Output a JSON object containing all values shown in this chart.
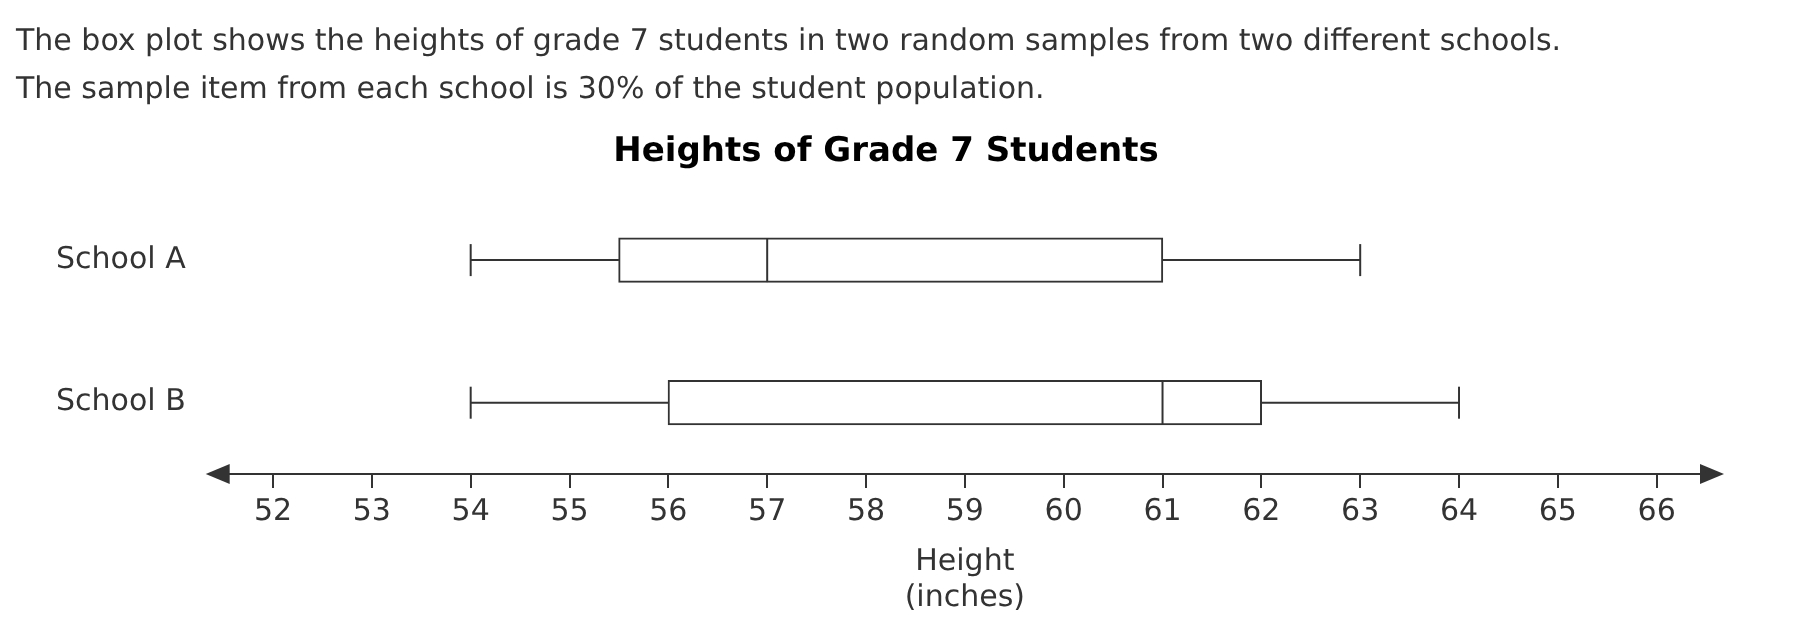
{
  "chart_data": {
    "type": "box",
    "orientation": "horizontal",
    "title": "Heights of Grade 7 Students",
    "xlabel": "Height\n(inches)",
    "annotations": [
      "The box plot shows the heights of grade 7 students in two random samples from two different schools.",
      "The sample item from each school is 30% of the student population."
    ],
    "categories": [
      "School A",
      "School B"
    ],
    "boxes": [
      {
        "low": 54,
        "q1": 55.5,
        "median": 57,
        "q3": 61,
        "high": 63
      },
      {
        "low": 54,
        "q1": 56,
        "median": 61,
        "q3": 62,
        "high": 64
      }
    ],
    "color": "#333333",
    "xlim": [
      51.4,
      66.6
    ],
    "xticks": [
      52,
      53,
      54,
      55,
      56,
      57,
      58,
      59,
      60,
      61,
      62,
      63,
      64,
      65,
      66
    ]
  }
}
